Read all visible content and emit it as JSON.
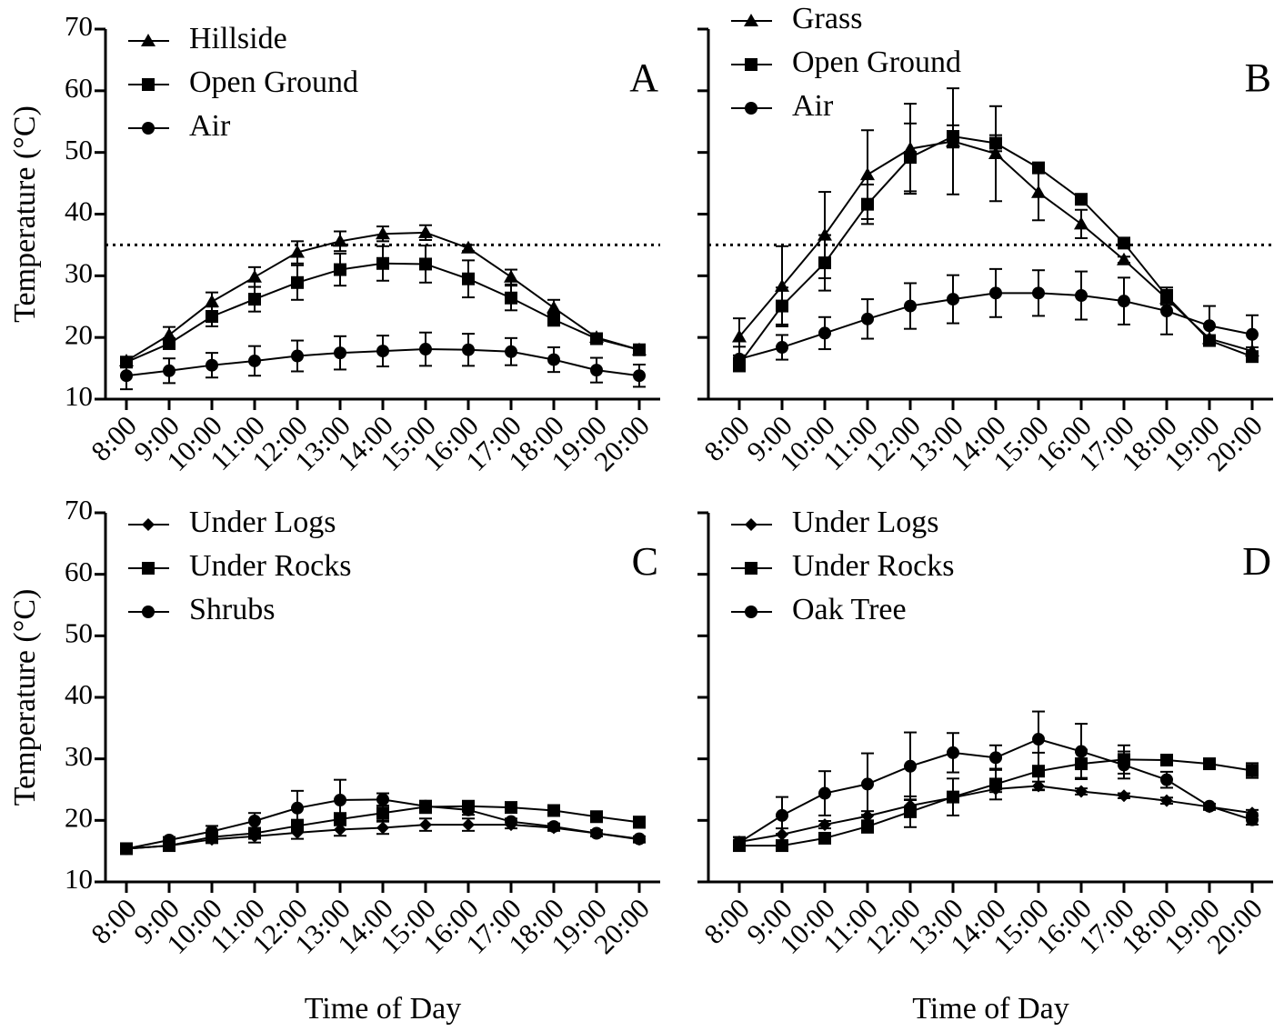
{
  "chart_data": [
    {
      "type": "line",
      "panel": "A",
      "y_label": "Temperature (°C)",
      "categories": [
        "8:00",
        "9:00",
        "10:00",
        "11:00",
        "12:00",
        "13:00",
        "14:00",
        "15:00",
        "16:00",
        "17:00",
        "18:00",
        "19:00",
        "20:00"
      ],
      "ylim": [
        10,
        70
      ],
      "yticks": [
        10,
        20,
        30,
        40,
        50,
        60,
        70
      ],
      "ytick_labels": true,
      "threshold": 35,
      "series": [
        {
          "name": "Hillside",
          "color": "#000000",
          "marker": "triangle",
          "values": [
            16.2,
            20.4,
            25.8,
            29.8,
            33.8,
            35.6,
            36.8,
            37.0,
            34.5,
            29.8,
            24.8,
            20.0,
            18.0
          ],
          "errors": [
            0.5,
            1.3,
            1.5,
            1.6,
            1.8,
            1.6,
            1.2,
            1.2,
            0.5,
            1.2,
            1.3,
            0.6,
            0.5
          ]
        },
        {
          "name": "Open Ground",
          "color": "#000000",
          "marker": "square",
          "values": [
            16.0,
            19.0,
            23.4,
            26.2,
            28.9,
            31.0,
            32.0,
            31.9,
            29.5,
            26.4,
            22.9,
            19.8,
            18.0
          ],
          "errors": [
            0.5,
            0.8,
            1.6,
            2.0,
            2.8,
            2.6,
            2.8,
            3.0,
            3.0,
            2.0,
            1.0,
            0.5,
            0.4
          ]
        },
        {
          "name": "Air",
          "color": "#000000",
          "marker": "circle",
          "values": [
            13.8,
            14.6,
            15.5,
            16.2,
            17.0,
            17.5,
            17.8,
            18.1,
            18.0,
            17.7,
            16.4,
            14.7,
            13.8
          ],
          "errors": [
            2.2,
            2.0,
            2.0,
            2.4,
            2.5,
            2.7,
            2.5,
            2.7,
            2.6,
            2.2,
            2.0,
            2.0,
            1.8
          ]
        }
      ]
    },
    {
      "type": "line",
      "panel": "B",
      "categories": [
        "8:00",
        "9:00",
        "10:00",
        "11:00",
        "12:00",
        "13:00",
        "14:00",
        "15:00",
        "16:00",
        "17:00",
        "18:00",
        "19:00",
        "20:00"
      ],
      "ylim": [
        10,
        70
      ],
      "yticks": [
        10,
        20,
        30,
        40,
        50,
        60,
        70
      ],
      "ytick_labels": false,
      "threshold": 35,
      "series": [
        {
          "name": "Grass",
          "color": "#000000",
          "marker": "triangle",
          "values": [
            20.1,
            28.3,
            36.6,
            46.4,
            50.6,
            51.8,
            49.8,
            43.5,
            38.4,
            32.6,
            26.3,
            19.8,
            17.8
          ],
          "errors": [
            3.0,
            6.5,
            7.0,
            7.2,
            7.3,
            8.6,
            7.7,
            4.5,
            2.3,
            0.5,
            1.0,
            0.5,
            0.6
          ]
        },
        {
          "name": "Open Ground",
          "color": "#000000",
          "marker": "square",
          "values": [
            15.7,
            25.1,
            32.1,
            41.6,
            49.2,
            52.6,
            51.5,
            47.5,
            42.4,
            35.3,
            26.7,
            19.5,
            16.9
          ],
          "errors": [
            1.0,
            3.0,
            4.5,
            3.2,
            5.5,
            1.8,
            1.3,
            0.5,
            0.5,
            0.3,
            1.0,
            0.7,
            0.6
          ]
        },
        {
          "name": "Air",
          "color": "#000000",
          "marker": "circle",
          "values": [
            16.5,
            18.4,
            20.7,
            23.0,
            25.1,
            26.2,
            27.2,
            27.2,
            26.8,
            25.9,
            24.3,
            21.9,
            20.5
          ],
          "errors": [
            2.0,
            2.0,
            2.6,
            3.2,
            3.7,
            3.9,
            3.9,
            3.7,
            3.9,
            3.8,
            3.8,
            3.2,
            3.1
          ]
        }
      ]
    },
    {
      "type": "line",
      "panel": "C",
      "y_label": "Temperature (°C)",
      "x_label": "Time of Day",
      "categories": [
        "8:00",
        "9:00",
        "10:00",
        "11:00",
        "12:00",
        "13:00",
        "14:00",
        "15:00",
        "16:00",
        "17:00",
        "18:00",
        "19:00",
        "20:00"
      ],
      "ylim": [
        10,
        70
      ],
      "yticks": [
        10,
        20,
        30,
        40,
        50,
        60,
        70
      ],
      "ytick_labels": true,
      "series": [
        {
          "name": "Under Logs",
          "color": "#000000",
          "marker": "diamond",
          "values": [
            15.4,
            15.9,
            16.9,
            17.4,
            18.0,
            18.5,
            18.8,
            19.3,
            19.3,
            19.3,
            18.8,
            17.9,
            16.9
          ],
          "errors": [
            0.6,
            0.5,
            0.6,
            1.0,
            1.0,
            1.0,
            1.0,
            1.0,
            1.0,
            0.6,
            0.5,
            0.5,
            0.5
          ]
        },
        {
          "name": "Under Rocks",
          "color": "#000000",
          "marker": "square",
          "values": [
            15.4,
            15.9,
            17.3,
            17.9,
            19.1,
            20.2,
            21.2,
            22.2,
            22.3,
            22.1,
            21.6,
            20.6,
            19.7
          ],
          "errors": [
            0.6,
            0.5,
            0.7,
            0.8,
            1.0,
            1.0,
            1.2,
            1.0,
            0.6,
            0.5,
            0.5,
            0.6,
            0.9
          ]
        },
        {
          "name": "Shrubs",
          "color": "#000000",
          "marker": "circle",
          "values": [
            15.4,
            16.8,
            18.2,
            19.9,
            22.0,
            23.3,
            23.4,
            22.3,
            21.7,
            19.8,
            19.0,
            17.9,
            17.0
          ],
          "errors": [
            0.6,
            0.5,
            0.9,
            1.3,
            2.8,
            3.3,
            1.0,
            0.8,
            0.8,
            0.5,
            0.5,
            0.5,
            0.4
          ]
        }
      ]
    },
    {
      "type": "line",
      "panel": "D",
      "x_label": "Time of Day",
      "categories": [
        "8:00",
        "9:00",
        "10:00",
        "11:00",
        "12:00",
        "13:00",
        "14:00",
        "15:00",
        "16:00",
        "17:00",
        "18:00",
        "19:00",
        "20:00"
      ],
      "ylim": [
        10,
        70
      ],
      "yticks": [
        10,
        20,
        30,
        40,
        50,
        60,
        70
      ],
      "ytick_labels": false,
      "series": [
        {
          "name": "Under Logs",
          "color": "#000000",
          "marker": "diamond",
          "values": [
            16.5,
            17.7,
            19.3,
            20.7,
            22.4,
            23.7,
            25.1,
            25.6,
            24.7,
            24.0,
            23.2,
            22.2,
            21.2
          ],
          "errors": [
            0.8,
            1.0,
            0.6,
            0.8,
            1.0,
            0.7,
            0.5,
            0.7,
            0.5,
            0.4,
            0.5,
            0.5,
            0.5
          ]
        },
        {
          "name": "Under Rocks",
          "color": "#000000",
          "marker": "square",
          "values": [
            15.9,
            15.9,
            17.1,
            19.0,
            21.4,
            23.8,
            25.9,
            28.0,
            29.2,
            29.9,
            29.8,
            29.2,
            28.1
          ],
          "errors": [
            0.8,
            0.6,
            0.5,
            1.0,
            2.5,
            3.0,
            2.5,
            3.0,
            2.3,
            2.3,
            0.6,
            0.6,
            1.2
          ]
        },
        {
          "name": "Oak Tree",
          "color": "#000000",
          "marker": "circle",
          "values": [
            16.4,
            20.8,
            24.4,
            25.9,
            28.8,
            31.0,
            30.2,
            33.2,
            31.2,
            29.0,
            26.6,
            22.3,
            20.1
          ],
          "errors": [
            0.8,
            3.0,
            3.6,
            5.0,
            5.5,
            3.2,
            2.0,
            4.5,
            4.5,
            2.2,
            1.3,
            0.4,
            0.8
          ]
        }
      ]
    }
  ]
}
